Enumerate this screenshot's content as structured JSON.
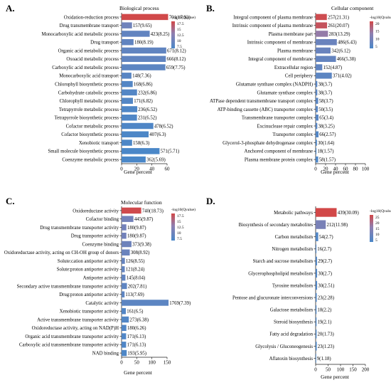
{
  "colors": {
    "low": "#4a87c8",
    "high": "#d24848"
  },
  "chart_data": [
    {
      "type": "bar",
      "orientation": "horizontal",
      "panel_letter": "A.",
      "title": "Biological process",
      "xlabel": "Gene percent",
      "xlim": [
        0,
        60
      ],
      "xticks": [
        "0",
        "20",
        "40",
        "60"
      ],
      "colorbar": {
        "label": "-log10(Qvalue)",
        "ticks": [
          "17.5",
          "15",
          "12.5",
          "10",
          "7.5"
        ],
        "range": [
          6,
          18
        ]
      },
      "categories": [
        "Oxidation-reduction process",
        "Drug transmembrane transport",
        "Monocarboxylic acid metabolic process",
        "Drug transport",
        "Organic acid metabolic process",
        "Oxoacid metabolic process",
        "Carboxylic acid metabolic process",
        "Monocarboxylic acid transport",
        "Chlorophyll biosynthetic process",
        "Carbohydrate catabolic process",
        "Chlorophyll metabolic process",
        "Tetrapyrrole metabolic process",
        "Tetrapyrrole biosynthetic process",
        "Cofactor metabolic process",
        "Cofactor biosynthetic process",
        "Xenobiotic transport",
        "Small molecule biosynthetic process",
        "Coenzyme metabolic process"
      ],
      "values": [
        61.4,
        13.8,
        37.1,
        15.8,
        58.9,
        58.4,
        57.8,
        13.0,
        14.7,
        20.4,
        15.0,
        20.7,
        20.3,
        41.9,
        35.7,
        13.9,
        50.1,
        31.8
      ],
      "labels": [
        "701(17.92)",
        "157(9.65)",
        "423(8.25)",
        "180(8.19)",
        "671(8.12)",
        "666(8.12)",
        "659(7.75)",
        "148(7.36)",
        "168(6.86)",
        "232(6.86)",
        "171(6.82)",
        "236(6.52)",
        "231(6.52)",
        "478(6.52)",
        "407(6.3)",
        "158(6.3)",
        "571(5.71)",
        "362(5.69)"
      ],
      "qvalues": [
        17.92,
        9.65,
        8.25,
        8.19,
        8.12,
        8.12,
        7.75,
        7.36,
        6.86,
        6.86,
        6.82,
        6.52,
        6.52,
        6.52,
        6.3,
        6.3,
        5.71,
        5.69
      ]
    },
    {
      "type": "bar",
      "orientation": "horizontal",
      "panel_letter": "B.",
      "title": "Cellular component",
      "xlabel": "Gene percent",
      "xlim": [
        0,
        100
      ],
      "xticks": [
        "0",
        "20",
        "40",
        "60",
        "80",
        "100"
      ],
      "colorbar": {
        "label": "-log10(Qvalue)",
        "ticks": [
          "20",
          "15",
          "10",
          "5"
        ],
        "range": [
          1,
          22
        ]
      },
      "categories": [
        "Integral component of plasma membrane",
        "Intrinsic component of plasma membrane",
        "Plasma membrane part",
        "Intrinsic component of membrane",
        "Plasma membrane",
        "Integral component of membrane",
        "Extracellular region",
        "Cell periphery",
        "Glutamate synthase complex (NADPH)",
        "Glutamate synthase complex",
        "ATPase dependent transmembrane transport complex",
        "ATP-binding cassette (ABC) transporter complex",
        "Transmembrane transporter complex",
        "Excinuclease repair complex",
        "Transporter complex",
        "Glycerol-3-phosphate dehydrogenase complex",
        "Anchored component of membrane",
        "Plasma membrane protein complex"
      ],
      "values": [
        22.5,
        22.9,
        24.8,
        42.6,
        30.0,
        40.8,
        13.3,
        32.5,
        3.3,
        3.3,
        5.1,
        4.4,
        5.7,
        3.3,
        5.8,
        2.6,
        1.6,
        5.1
      ],
      "labels": [
        "257(21.31)",
        "261(20.07)",
        "283(13.29)",
        "486(6.43)",
        "342(6.12)",
        "466(5.38)",
        "152(4.87)",
        "371(4.02)",
        "38(3.7)",
        "38(3.7)",
        "58(3.7)",
        "50(3.5)",
        "65(3.4)",
        "38(3.25)",
        "66(2.57)",
        "30(1.64)",
        "18(1.57)",
        "58(1.57)"
      ],
      "qvalues": [
        21.31,
        20.07,
        13.29,
        6.43,
        6.12,
        5.38,
        4.87,
        4.02,
        3.7,
        3.7,
        3.7,
        3.5,
        3.4,
        3.25,
        2.57,
        1.64,
        1.57,
        1.57
      ]
    },
    {
      "type": "bar",
      "orientation": "horizontal",
      "panel_letter": "C.",
      "title": "Molecular function",
      "xlabel": "Gene percent",
      "xlim": [
        0,
        150
      ],
      "xticks": [
        "0",
        "50",
        "100",
        "150"
      ],
      "colorbar": {
        "label": "-log10(Qvalue)",
        "ticks": [
          "17.5",
          "15",
          "12.5",
          "10",
          "7.5"
        ],
        "range": [
          5.5,
          19
        ]
      },
      "categories": [
        "Oxidoreductase activity",
        "Cofactor binding",
        "Drug transmembrane transporter activity",
        "Drug transporter activity",
        "Coenzyme binding",
        "Oxidoreductase activity, acting on CH-OH group of donors",
        "Solute:cation antiporter activity",
        "Solute:proton antiporter activity",
        "Antiporter activity",
        "Secondary active transmembrane transporter activity",
        "Drug:proton antiporter activity",
        "Catalytic activity",
        "Xenobiotic transporter activity",
        "Active transmembrane transporter activity",
        "Oxidoreductase activity, acting on NAD(P)H",
        "Organic acid transmembrane transporter activity",
        "Carboxylic acid transmembrane transporter activity",
        "NAD binding"
      ],
      "values": [
        64.8,
        39.0,
        15.8,
        15.8,
        32.7,
        27.0,
        11.0,
        10.6,
        12.7,
        17.7,
        9.9,
        154.9,
        14.1,
        23.9,
        15.8,
        15.0,
        15.0,
        16.9
      ],
      "labels": [
        "740(18.73)",
        "445(9.87)",
        "180(9.87)",
        "180(9.87)",
        "373(9.38)",
        "308(8.92)",
        "126(8.55)",
        "121(8.24)",
        "145(8.04)",
        "202(7.81)",
        "113(7.69)",
        "1769(7.39)",
        "161(6.5)",
        "273(6.38)",
        "180(6.26)",
        "171(6.13)",
        "171(6.13)",
        "193(5.95)"
      ],
      "qvalues": [
        18.73,
        9.87,
        9.87,
        9.87,
        9.38,
        8.92,
        8.55,
        8.24,
        8.04,
        7.81,
        7.69,
        7.39,
        6.5,
        6.38,
        6.26,
        6.13,
        6.13,
        5.95
      ]
    },
    {
      "type": "bar",
      "orientation": "horizontal",
      "panel_letter": "D.",
      "title": "",
      "xlabel": "Gene percent",
      "xlim": [
        0,
        200
      ],
      "xticks": [
        "0",
        "50",
        "100",
        "150",
        "200"
      ],
      "colorbar": {
        "label": "-log10(Qvalue)",
        "ticks": [
          "25",
          "20",
          "15",
          "10",
          "5"
        ],
        "range": [
          1,
          30
        ]
      },
      "categories": [
        "Metabolic pathways",
        "Biosynthesis of secondary metabolites",
        "Carbon metabolism",
        "Nitrogen metabolism",
        "Starch and sucrose metabolism",
        "Glycerophospholipid metabolism",
        "Tyrosine metabolism",
        "Pentose and glucuronate interconversions",
        "Galactose metabolism",
        "Steroid biosynthesis",
        "Fatty acid degradation",
        "Glycolysis / Gluconeogenesis",
        "Aflatoxin biosynthesis"
      ],
      "values": [
        84.3,
        40.7,
        10.4,
        3.1,
        5.6,
        5.8,
        5.8,
        4.4,
        3.5,
        3.6,
        3.8,
        4.4,
        1.7
      ],
      "labels": [
        "439(30.09)",
        "212(11.98)",
        "54(2.7)",
        "16(2.7)",
        "29(2.7)",
        "30(2.7)",
        "30(2.51)",
        "23(2.28)",
        "18(2.2)",
        "19(2.1)",
        "20(1.73)",
        "23(1.23)",
        "9(1.18)"
      ],
      "qvalues": [
        30.09,
        11.98,
        2.7,
        2.7,
        2.7,
        2.7,
        2.51,
        2.28,
        2.2,
        2.1,
        1.73,
        1.23,
        1.18
      ]
    }
  ]
}
